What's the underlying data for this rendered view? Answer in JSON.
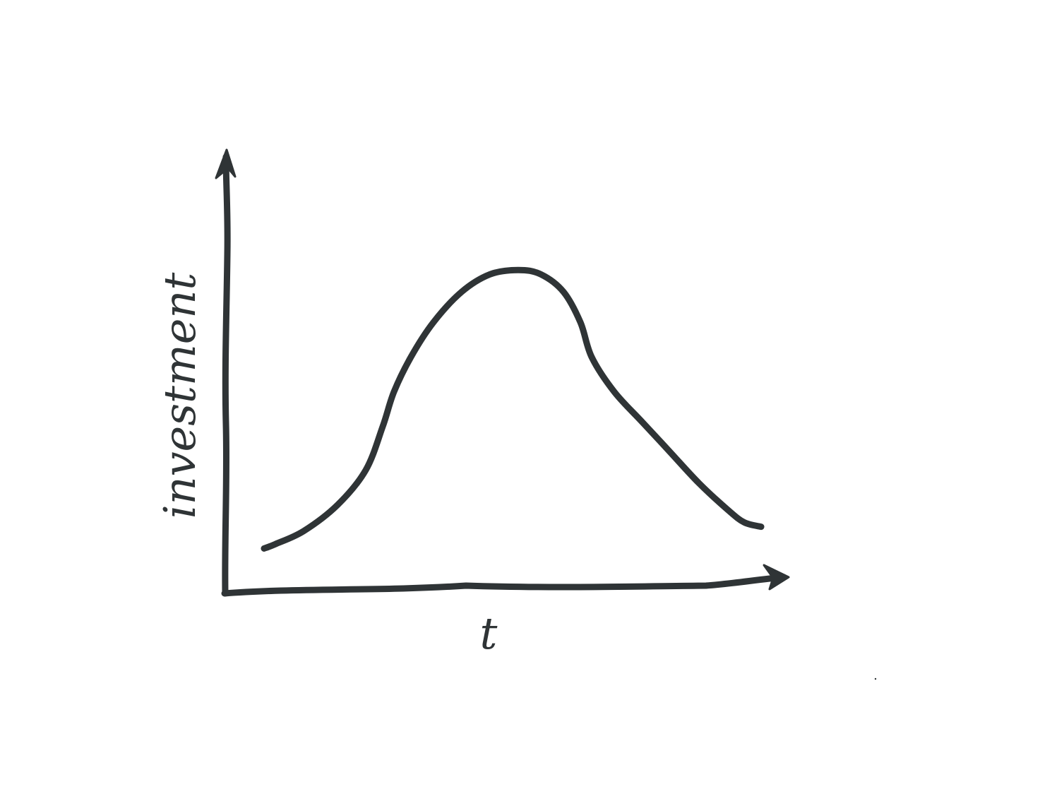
{
  "chart_data": {
    "type": "line",
    "title": "",
    "xlabel": "t",
    "ylabel": "investment",
    "xlim": [
      0,
      100
    ],
    "ylim": [
      0,
      100
    ],
    "grid": false,
    "legend": "none",
    "axis_ticks": false,
    "series": [
      {
        "x": [
          7,
          9,
          14,
          20,
          25,
          28,
          30,
          33,
          37,
          42,
          47,
          52,
          56,
          60,
          63,
          65,
          69,
          74,
          79,
          84,
          89,
          92,
          95
        ],
        "values": [
          10,
          11,
          14,
          20,
          28,
          38,
          46,
          54,
          62,
          69,
          73,
          74,
          73,
          69,
          62,
          54,
          46,
          39,
          32,
          25,
          19,
          16,
          15
        ]
      }
    ]
  },
  "colors": {
    "ink": "#2f3436",
    "paper": "#ffffff"
  }
}
